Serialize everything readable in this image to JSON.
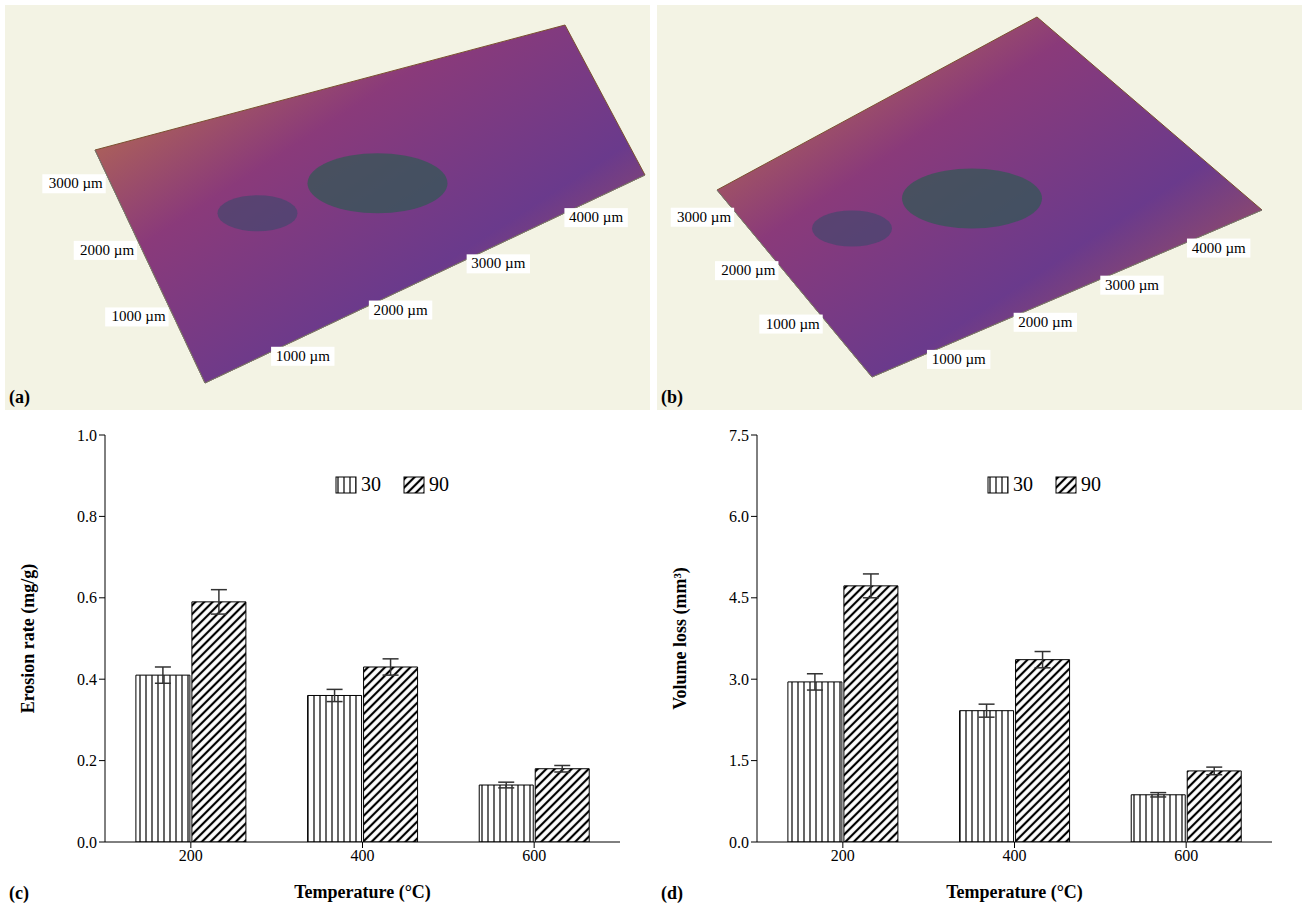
{
  "surfaces": [
    {
      "panel": "(a)",
      "x_labels": [
        "1000 µm",
        "2000 µm",
        "3000 µm",
        "4000 µm"
      ],
      "y_labels": [
        "1000 µm",
        "2000 µm",
        "3000 µm"
      ]
    },
    {
      "panel": "(b)",
      "x_labels": [
        "1000 µm",
        "2000 µm",
        "3000 µm",
        "4000 µm"
      ],
      "y_labels": [
        "1000 µm",
        "2000 µm",
        "3000 µm"
      ]
    }
  ],
  "chart_data": [
    {
      "panel": "(c)",
      "type": "bar",
      "x_label": "Temperature (°C)",
      "y_label": "Erosion rate (mg/g)",
      "categories": [
        "200",
        "400",
        "600"
      ],
      "series": [
        {
          "name": "30",
          "color": "#000000",
          "marker": "vertical_hatch",
          "values": [
            0.41,
            0.36,
            0.14
          ],
          "errors": [
            0.02,
            0.015,
            0.007
          ]
        },
        {
          "name": "90",
          "color": "#000000",
          "marker": "diagonal_hatch",
          "values": [
            0.59,
            0.43,
            0.18
          ],
          "errors": [
            0.03,
            0.02,
            0.008
          ]
        }
      ],
      "ylim": [
        0,
        1
      ],
      "yticks": [
        {
          "value": 0,
          "label": "0.0"
        },
        0.2,
        0.4,
        0.6,
        0.8,
        {
          "value": 1,
          "label": "1.0"
        }
      ],
      "legend": "top"
    },
    {
      "panel": "(d)",
      "type": "bar",
      "x_label": "Temperature (°C)",
      "y_label": "Volume loss (mm³)",
      "categories": [
        "200",
        "400",
        "600"
      ],
      "series": [
        {
          "name": "30",
          "color": "#000000",
          "marker": "vertical_hatch",
          "values": [
            2.95,
            2.42,
            0.87
          ],
          "errors": [
            0.15,
            0.12,
            0.04
          ]
        },
        {
          "name": "90",
          "color": "#000000",
          "marker": "diagonal_hatch",
          "values": [
            4.72,
            3.36,
            1.31
          ],
          "errors": [
            0.22,
            0.15,
            0.07
          ]
        }
      ],
      "ylim": [
        0,
        7.5
      ],
      "yticks": [
        {
          "value": 0,
          "label": "0.0"
        },
        1.5,
        {
          "value": 3,
          "label": "3.0"
        },
        4.5,
        {
          "value": 6,
          "label": "6.0"
        },
        7.5
      ],
      "legend": "top"
    }
  ]
}
